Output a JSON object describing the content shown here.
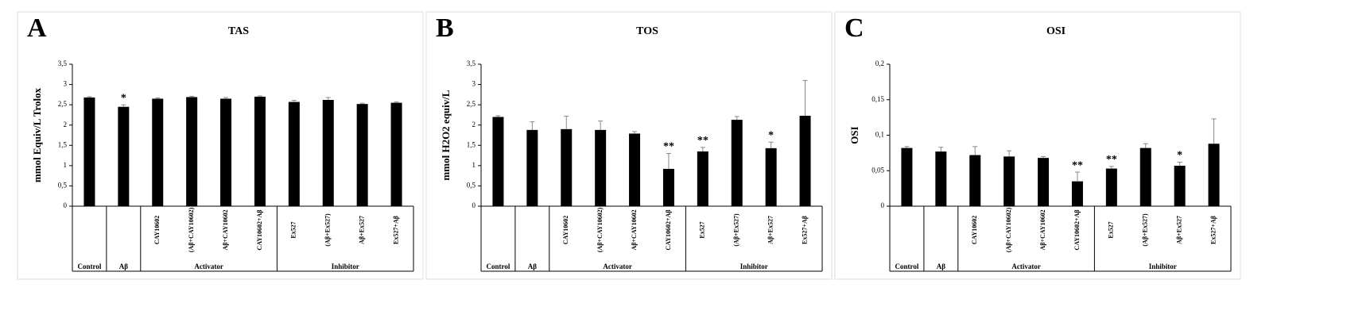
{
  "chart_data": [
    {
      "type": "bar",
      "panel": "A",
      "title": "TAS",
      "ylabel": "mmol Equiv/L Trolox",
      "color": "#000000",
      "categories": [
        null,
        null,
        "CAY10602",
        "(Aβ+CAY10602)",
        "Aβ+CAY10602",
        "CAY10602+Aβ",
        "Ex527",
        "(Aβ+Ex527)",
        "Aβ+Ex527",
        "Ex527+Aβ"
      ],
      "values": [
        2.68,
        2.45,
        2.65,
        2.69,
        2.65,
        2.7,
        2.57,
        2.62,
        2.52,
        2.55
      ],
      "errors": [
        0.02,
        0.05,
        0.02,
        0.02,
        0.03,
        0.02,
        0.04,
        0.06,
        0.02,
        0.02
      ],
      "significance": [
        null,
        "*",
        null,
        null,
        null,
        null,
        null,
        null,
        null,
        null
      ],
      "groups": [
        {
          "label": "Control",
          "count": 1
        },
        {
          "label": "Aβ",
          "count": 1
        },
        {
          "label": "Activator",
          "count": 4
        },
        {
          "label": "Inhibitor",
          "count": 4
        }
      ],
      "ylim": [
        0,
        3.5
      ],
      "yticks": [
        0,
        {
          "value": 0.5,
          "label": "0,5"
        },
        1,
        {
          "value": 1.5,
          "label": "1,5"
        },
        2,
        {
          "value": 2.5,
          "label": "2,5"
        },
        3,
        {
          "value": 3.5,
          "label": "3,5"
        }
      ]
    },
    {
      "type": "bar",
      "panel": "B",
      "title": "TOS",
      "ylabel": "mmol H2O2 equiv/L",
      "color": "#000000",
      "categories": [
        null,
        null,
        "CAY10602",
        "(Aβ+CAY10602)",
        "Aβ+CAY10602",
        "CAY10602+Aβ",
        "Ex527",
        "(Aβ+Ex527)",
        "Aβ+Ex527",
        "Ex527+Aβ"
      ],
      "values": [
        2.2,
        1.88,
        1.9,
        1.88,
        1.79,
        0.92,
        1.35,
        2.13,
        1.43,
        2.23
      ],
      "errors": [
        0.03,
        0.2,
        0.32,
        0.22,
        0.05,
        0.38,
        0.1,
        0.08,
        0.15,
        0.87
      ],
      "significance": [
        null,
        null,
        null,
        null,
        null,
        "**",
        "**",
        null,
        "*",
        null
      ],
      "groups": [
        {
          "label": "Control",
          "count": 1
        },
        {
          "label": "Aβ",
          "count": 1
        },
        {
          "label": "Activator",
          "count": 4
        },
        {
          "label": "Inhibitor",
          "count": 4
        }
      ],
      "ylim": [
        0,
        3.5
      ],
      "yticks": [
        0,
        {
          "value": 0.5,
          "label": "0,5"
        },
        1,
        {
          "value": 1.5,
          "label": "1,5"
        },
        2,
        {
          "value": 2.5,
          "label": "2,5"
        },
        3,
        {
          "value": 3.5,
          "label": "3,5"
        }
      ]
    },
    {
      "type": "bar",
      "panel": "C",
      "title": "OSI",
      "ylabel": "OSI",
      "color": "#000000",
      "categories": [
        null,
        null,
        "CAY10602",
        "(Aβ+CAY10602)",
        "Aβ+CAY10602",
        "CAY10602+Aβ",
        "Ex527",
        "(Aβ+Ex527)",
        "Aβ+Ex527",
        "Ex527+Aβ"
      ],
      "values": [
        0.082,
        0.077,
        0.072,
        0.07,
        0.068,
        0.035,
        0.053,
        0.082,
        0.057,
        0.088
      ],
      "errors": [
        0.002,
        0.006,
        0.012,
        0.008,
        0.002,
        0.013,
        0.003,
        0.006,
        0.005,
        0.035
      ],
      "significance": [
        null,
        null,
        null,
        null,
        null,
        "**",
        "**",
        null,
        "*",
        null
      ],
      "groups": [
        {
          "label": "Control",
          "count": 1
        },
        {
          "label": "Aβ",
          "count": 1
        },
        {
          "label": "Activator",
          "count": 4
        },
        {
          "label": "Inhibitor",
          "count": 4
        }
      ],
      "ylim": [
        0,
        0.2
      ],
      "yticks": [
        0,
        {
          "value": 0.05,
          "label": "0,05"
        },
        {
          "value": 0.1,
          "label": "0,1"
        },
        {
          "value": 0.15,
          "label": "0,15"
        },
        {
          "value": 0.2,
          "label": "0,2"
        }
      ]
    }
  ]
}
